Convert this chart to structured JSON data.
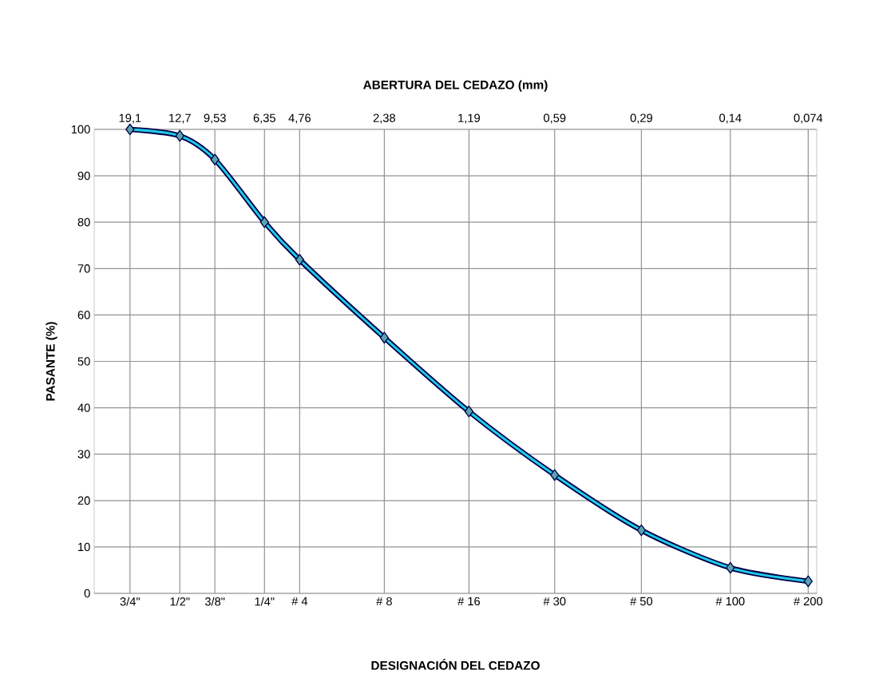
{
  "chart_data": {
    "type": "line",
    "xlabel": "ABERTURA DEL CEDAZO (mm)",
    "ylabel": "PASANTE (%)",
    "x": [
      19.1,
      12.7,
      9.53,
      6.35,
      4.76,
      2.38,
      1.19,
      0.59,
      0.29,
      0.14,
      0.074
    ],
    "series": [
      {
        "color": "#1fcde6",
        "values": [
          100,
          98.6,
          93.5,
          80,
          71.9,
          55.1,
          39.2,
          25.5,
          13.6,
          5.5,
          2.6
        ]
      }
    ],
    "log": "x",
    "xlim": [
      25.6,
      0.069
    ],
    "ylim": [
      0,
      100
    ],
    "xticks": [
      {
        "value": 19.1,
        "label": "19,1"
      },
      {
        "value": 12.7,
        "label": "12,7"
      },
      {
        "value": 9.53,
        "label": "9,53"
      },
      {
        "value": 6.35,
        "label": "6,35"
      },
      {
        "value": 4.76,
        "label": "4,76"
      },
      {
        "value": 2.38,
        "label": "2,38"
      },
      {
        "value": 1.19,
        "label": "1,19"
      },
      {
        "value": 0.59,
        "label": "0,59"
      },
      {
        "value": 0.29,
        "label": "0,29"
      },
      {
        "value": 0.14,
        "label": "0,14"
      },
      {
        "value": 0.074,
        "label": "0,074"
      }
    ],
    "yticks": [
      0,
      10,
      20,
      30,
      40,
      50,
      60,
      70,
      80,
      90,
      100
    ],
    "annotations": [
      "3/4\"",
      "1/2\"",
      "3/8\"",
      "1/4\"",
      "# 4",
      "# 8",
      "# 16",
      "# 30",
      "# 50",
      "# 100",
      "# 200",
      "DESIGNACIÓN DEL CEDAZO"
    ],
    "grid": true,
    "marker": "diamond",
    "line_style": "solid"
  }
}
